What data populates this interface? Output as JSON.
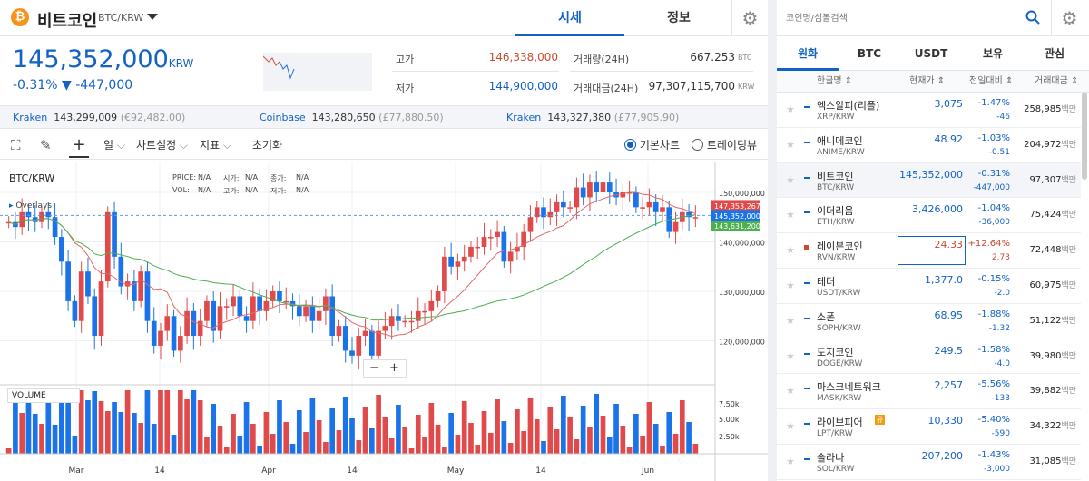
{
  "header": {
    "coin_logo": "₿",
    "coin_name": "비트코인",
    "pair": "BTC/KRW",
    "tabs": [
      "시세",
      "정보"
    ],
    "active_tab": 0
  },
  "ticker": {
    "price": "145,352,000",
    "price_unit": "KRW",
    "change": "-0.31% ▼ -447,000",
    "high_label": "고가",
    "high": "146,338,000",
    "low_label": "저가",
    "low": "144,900,000",
    "vol_label": "거래량(24H)",
    "vol": "667.253",
    "vol_unit": "BTC",
    "amt_label": "거래대금(24H)",
    "amt": "97,307,115,700",
    "amt_unit": "KRW"
  },
  "exchanges": [
    {
      "name": "Kraken",
      "price": "143,299,009",
      "sub": "(€92,482.00)"
    },
    {
      "name": "Coinbase",
      "price": "143,280,650",
      "sub": "(£77,880.50)"
    },
    {
      "name": "Kraken",
      "price": "143,327,380",
      "sub": "(£77,905.90)"
    }
  ],
  "toolbar": {
    "period": "일",
    "chart_settings": "차트설정",
    "indicators": "지표",
    "reset": "초기화",
    "basic_chart": "기본차트",
    "trading_view": "트레이딩뷰"
  },
  "chart": {
    "symbol": "BTC/KRW",
    "overlays": "Overlays",
    "ohlc_labels": [
      "PRICE:",
      "N/A",
      "시가:",
      "N/A",
      "종가:",
      "N/A",
      "VOL:",
      "N/A",
      "고가:",
      "N/A",
      "저가:",
      "N/A"
    ],
    "y_ticks": [
      "150,000,000",
      "140,000,000",
      "130,000,000",
      "120,000,000"
    ],
    "tag_red": "147,353,267",
    "tag_blue": "145,352,000",
    "tag_green": "143,631,200",
    "vol_label": "VOLUME",
    "vol_ticks": [
      "7.50k",
      "5.00k",
      "2.50k"
    ],
    "x_ticks": [
      "Mar",
      "14",
      "Apr",
      "14",
      "May",
      "14",
      "Jun"
    ],
    "zoom_minus": "−",
    "zoom_plus": "+"
  },
  "colors": {
    "accent": "#1261c4",
    "up": "#e04a4a",
    "down": "#1a73e8",
    "ma20": "#e06a6a",
    "ma60": "#4caf50"
  },
  "market": {
    "search_placeholder": "코인명/심볼검색",
    "tabs": [
      "원화",
      "BTC",
      "USDT",
      "보유",
      "관심"
    ],
    "cols": [
      "한글명 ⇕",
      "현재가 ⇕",
      "전일대비 ⇕",
      "거래대금 ⇕"
    ],
    "rows": [
      {
        "name": "엑스알피(리플)",
        "sym": "XRP/KRW",
        "price": "3,075",
        "pct": "-1.47%",
        "diff": "-46",
        "vol": "258,985",
        "unit": "백만",
        "dir": "down"
      },
      {
        "name": "애니메코인",
        "sym": "ANIME/KRW",
        "price": "48.92",
        "pct": "-1.03%",
        "diff": "-0.51",
        "vol": "204,972",
        "unit": "백만",
        "dir": "down"
      },
      {
        "name": "비트코인",
        "sym": "BTC/KRW",
        "price": "145,352,000",
        "pct": "-0.31%",
        "diff": "-447,000",
        "vol": "97,307",
        "unit": "백만",
        "dir": "down"
      },
      {
        "name": "이더리움",
        "sym": "ETH/KRW",
        "price": "3,426,000",
        "pct": "-1.04%",
        "diff": "-36,000",
        "vol": "75,424",
        "unit": "백만",
        "dir": "down"
      },
      {
        "name": "레이븐코인",
        "sym": "RVN/KRW",
        "price": "24.33",
        "pct": "+12.64%",
        "diff": "2.73",
        "vol": "72,448",
        "unit": "백만",
        "dir": "up"
      },
      {
        "name": "테더",
        "sym": "USDT/KRW",
        "price": "1,377.0",
        "pct": "-0.15%",
        "diff": "-2.0",
        "vol": "60,975",
        "unit": "백만",
        "dir": "down"
      },
      {
        "name": "소폰",
        "sym": "SOPH/KRW",
        "price": "68.95",
        "pct": "-1.88%",
        "diff": "-1.32",
        "vol": "51,122",
        "unit": "백만",
        "dir": "down"
      },
      {
        "name": "도지코인",
        "sym": "DOGE/KRW",
        "price": "249.5",
        "pct": "-1.58%",
        "diff": "-4.0",
        "vol": "39,980",
        "unit": "백만",
        "dir": "down"
      },
      {
        "name": "마스크네트워크",
        "sym": "MASK/KRW",
        "price": "2,257",
        "pct": "-5.56%",
        "diff": "-133",
        "vol": "39,882",
        "unit": "백만",
        "dir": "down"
      },
      {
        "name": "라이브피어",
        "sym": "LPT/KRW",
        "price": "10,330",
        "pct": "-5.40%",
        "diff": "-590",
        "vol": "34,322",
        "unit": "백만",
        "dir": "down",
        "badge": "유"
      },
      {
        "name": "솔라나",
        "sym": "SOL/KRW",
        "price": "207,200",
        "pct": "-1.43%",
        "diff": "-3,000",
        "vol": "31,085",
        "unit": "백만",
        "dir": "down"
      }
    ]
  }
}
